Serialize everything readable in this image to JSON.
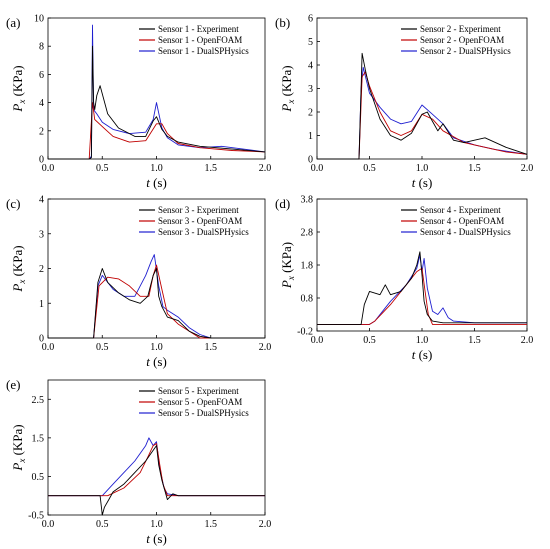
{
  "colors": {
    "experiment": "#000000",
    "openfoam": "#c00000",
    "dualsph": "#1f1fd0"
  },
  "chart_data": [
    {
      "type": "line",
      "label": "(a)",
      "xlabel": "t (s)",
      "ylabel": "Px (KPa)",
      "xlim": [
        0,
        2.0
      ],
      "ylim": [
        0,
        10
      ],
      "xticks": [
        "0.0",
        "0.5",
        "1.0",
        "1.5",
        "2.0"
      ],
      "yticks": [
        "0",
        "2",
        "4",
        "6",
        "8",
        "10"
      ],
      "legend": "top-right",
      "grid": false,
      "series": [
        {
          "name": "Sensor 1 - Experiment",
          "color": "experiment",
          "x": [
            0,
            0.38,
            0.4,
            0.41,
            0.42,
            0.43,
            0.45,
            0.48,
            0.55,
            0.65,
            0.8,
            0.9,
            0.97,
            1.0,
            1.05,
            1.1,
            1.2,
            1.4,
            1.7,
            2.0
          ],
          "y": [
            0,
            0,
            0.1,
            8.0,
            4.0,
            3.5,
            4.5,
            5.2,
            3.2,
            2.2,
            1.6,
            1.6,
            2.7,
            3.0,
            2.1,
            1.6,
            1.2,
            0.9,
            0.7,
            0.5
          ]
        },
        {
          "name": "Sensor 1 - OpenFOAM",
          "color": "openfoam",
          "x": [
            0,
            0.38,
            0.41,
            0.43,
            0.5,
            0.6,
            0.75,
            0.9,
            1.0,
            1.05,
            1.1,
            1.2,
            1.4,
            1.7,
            2.0
          ],
          "y": [
            0,
            0,
            4.0,
            2.8,
            2.3,
            1.6,
            1.2,
            1.3,
            2.5,
            2.5,
            1.8,
            1.1,
            0.8,
            0.6,
            0.5
          ]
        },
        {
          "name": "Sensor 1 - DualSPHysics",
          "color": "dualsph",
          "x": [
            0,
            0.38,
            0.4,
            0.41,
            0.42,
            0.45,
            0.5,
            0.6,
            0.75,
            0.9,
            0.97,
            1.0,
            1.05,
            1.1,
            1.2,
            1.4,
            1.6,
            1.8,
            2.0
          ],
          "y": [
            0,
            0,
            0.2,
            9.5,
            3.5,
            3.2,
            2.6,
            2.1,
            1.8,
            1.9,
            2.8,
            4.0,
            2.2,
            1.5,
            1.0,
            0.8,
            0.9,
            0.7,
            0.5
          ]
        }
      ]
    },
    {
      "type": "line",
      "label": "(b)",
      "xlabel": "t (s)",
      "ylabel": "Px (KPa)",
      "xlim": [
        0,
        2.0
      ],
      "ylim": [
        0,
        6
      ],
      "xticks": [
        "0.0",
        "0.5",
        "1.0",
        "1.5",
        "2.0"
      ],
      "yticks": [
        "0",
        "1",
        "2",
        "3",
        "4",
        "5",
        "6"
      ],
      "legend": "top-right",
      "grid": false,
      "series": [
        {
          "name": "Sensor 2 - Experiment",
          "color": "experiment",
          "x": [
            0,
            0.4,
            0.42,
            0.43,
            0.46,
            0.5,
            0.6,
            0.7,
            0.8,
            0.9,
            1.0,
            1.05,
            1.1,
            1.15,
            1.2,
            1.3,
            1.4,
            1.6,
            1.8,
            2.0
          ],
          "y": [
            0,
            0,
            3.0,
            4.5,
            3.8,
            3.0,
            1.7,
            1.0,
            0.8,
            1.1,
            1.9,
            2.0,
            1.6,
            1.2,
            1.5,
            0.8,
            0.7,
            0.9,
            0.5,
            0.2
          ]
        },
        {
          "name": "Sensor 2 - OpenFOAM",
          "color": "openfoam",
          "x": [
            0,
            0.4,
            0.43,
            0.46,
            0.5,
            0.6,
            0.7,
            0.8,
            0.9,
            1.0,
            1.1,
            1.2,
            1.4,
            1.6,
            1.8,
            2.0
          ],
          "y": [
            0,
            0,
            3.5,
            3.7,
            3.1,
            2.0,
            1.2,
            1.0,
            1.2,
            1.9,
            1.7,
            1.2,
            0.7,
            0.5,
            0.3,
            0.2
          ]
        },
        {
          "name": "Sensor 2 - DualSPHysics",
          "color": "dualsph",
          "x": [
            0,
            0.4,
            0.42,
            0.44,
            0.5,
            0.6,
            0.7,
            0.8,
            0.9,
            1.0,
            1.1,
            1.2,
            1.3,
            1.5,
            1.7,
            2.0
          ],
          "y": [
            0,
            0,
            3.0,
            3.9,
            2.8,
            2.2,
            1.7,
            1.5,
            1.6,
            2.3,
            1.9,
            1.5,
            0.9,
            0.6,
            0.4,
            0.2
          ]
        }
      ]
    },
    {
      "type": "line",
      "label": "(c)",
      "xlabel": "t (s)",
      "ylabel": "Px (KPa)",
      "xlim": [
        0,
        2.0
      ],
      "ylim": [
        0,
        4
      ],
      "xticks": [
        "0.0",
        "0.5",
        "1.0",
        "1.5",
        "2.0"
      ],
      "yticks": [
        "0",
        "1",
        "2",
        "3",
        "4"
      ],
      "legend": "top-right",
      "grid": false,
      "series": [
        {
          "name": "Sensor 3 - Experiment",
          "color": "experiment",
          "x": [
            0,
            0.42,
            0.46,
            0.5,
            0.55,
            0.65,
            0.75,
            0.85,
            0.92,
            0.97,
            1.0,
            1.02,
            1.05,
            1.1,
            1.2,
            1.3,
            1.4,
            1.5,
            2.0
          ],
          "y": [
            0,
            0,
            1.6,
            2.0,
            1.6,
            1.3,
            1.1,
            1.0,
            1.2,
            1.8,
            2.0,
            1.2,
            0.9,
            0.6,
            0.5,
            0.2,
            0.05,
            0,
            0
          ]
        },
        {
          "name": "Sensor 3 - OpenFOAM",
          "color": "openfoam",
          "x": [
            0,
            0.42,
            0.47,
            0.55,
            0.65,
            0.75,
            0.85,
            0.93,
            0.97,
            1.0,
            1.05,
            1.1,
            1.2,
            1.3,
            1.4,
            2.0
          ],
          "y": [
            0,
            0,
            1.5,
            1.75,
            1.7,
            1.5,
            1.2,
            1.2,
            1.8,
            2.1,
            1.4,
            0.7,
            0.4,
            0.2,
            0,
            0
          ]
        },
        {
          "name": "Sensor 3 - DualSPHysics",
          "color": "dualsph",
          "x": [
            0,
            0.42,
            0.46,
            0.5,
            0.6,
            0.7,
            0.8,
            0.9,
            0.95,
            0.98,
            1.02,
            1.06,
            1.1,
            1.2,
            1.3,
            1.4,
            1.5,
            2.0
          ],
          "y": [
            0,
            0,
            1.5,
            1.8,
            1.4,
            1.2,
            1.2,
            1.8,
            2.2,
            2.4,
            1.5,
            0.9,
            0.8,
            0.6,
            0.3,
            0.1,
            0,
            0
          ]
        }
      ]
    },
    {
      "type": "line",
      "label": "(d)",
      "xlabel": "t (s)",
      "ylabel": "Px (KPa)",
      "xlim": [
        0,
        2.0
      ],
      "ylim": [
        -0.2,
        3.8
      ],
      "xticks": [
        "0.0",
        "0.5",
        "1.0",
        "1.5",
        "2.0"
      ],
      "yticks": [
        "-0.2",
        "0.8",
        "1.8",
        "2.8",
        "3.8"
      ],
      "legend": "top-right",
      "grid": false,
      "series": [
        {
          "name": "Sensor 4 - Experiment",
          "color": "experiment",
          "x": [
            0,
            0.42,
            0.45,
            0.5,
            0.6,
            0.65,
            0.7,
            0.8,
            0.9,
            0.95,
            0.98,
            1.0,
            1.02,
            1.05,
            1.1,
            1.2,
            1.5,
            2.0
          ],
          "y": [
            0,
            0,
            0.6,
            1.0,
            0.9,
            1.2,
            0.9,
            1.0,
            1.4,
            1.8,
            2.2,
            1.5,
            0.7,
            0.3,
            0.1,
            0.05,
            0.05,
            0.05
          ]
        },
        {
          "name": "Sensor 4 - OpenFOAM",
          "color": "openfoam",
          "x": [
            0,
            0.5,
            0.55,
            0.7,
            0.85,
            0.95,
            1.0,
            1.03,
            1.06,
            1.1,
            2.0
          ],
          "y": [
            0,
            0,
            0.1,
            0.6,
            1.2,
            1.6,
            1.7,
            1.0,
            0.3,
            0,
            0
          ]
        },
        {
          "name": "Sensor 4 - DualSPHysics",
          "color": "dualsph",
          "x": [
            0,
            0.5,
            0.55,
            0.7,
            0.85,
            0.95,
            0.98,
            1.0,
            1.02,
            1.05,
            1.1,
            1.15,
            1.2,
            1.25,
            1.3,
            1.5,
            2.0
          ],
          "y": [
            0,
            0,
            0.1,
            0.7,
            1.2,
            1.7,
            2.1,
            1.6,
            2.0,
            1.1,
            0.4,
            0.3,
            0.5,
            0.2,
            0.1,
            0.05,
            0.05
          ]
        }
      ]
    },
    {
      "type": "line",
      "label": "(e)",
      "xlabel": "t (s)",
      "ylabel": "Px (KPa)",
      "xlim": [
        0,
        2.0
      ],
      "ylim": [
        -0.5,
        3
      ],
      "xticks": [
        "0.0",
        "0.5",
        "1.0",
        "1.5",
        "2.0"
      ],
      "yticks": [
        "-0.5",
        "0.5",
        "1.5",
        "2.5"
      ],
      "legend": "top-right",
      "grid": false,
      "series": [
        {
          "name": "Sensor 5 - Experiment",
          "color": "experiment",
          "x": [
            0,
            0.48,
            0.5,
            0.52,
            0.56,
            0.6,
            0.7,
            0.8,
            0.9,
            0.95,
            1.0,
            1.02,
            1.05,
            1.1,
            1.15,
            1.2,
            2.0
          ],
          "y": [
            0,
            0,
            -0.5,
            -0.3,
            -0.1,
            0.1,
            0.3,
            0.6,
            0.9,
            1.1,
            1.3,
            0.8,
            0.4,
            -0.1,
            0.05,
            0,
            0
          ]
        },
        {
          "name": "Sensor 5 - OpenFOAM",
          "color": "openfoam",
          "x": [
            0,
            0.55,
            0.7,
            0.85,
            0.92,
            0.97,
            1.0,
            1.03,
            1.06,
            1.1,
            2.0
          ],
          "y": [
            0,
            0,
            0.2,
            0.6,
            1.0,
            1.3,
            1.35,
            0.8,
            0.3,
            0,
            0
          ]
        },
        {
          "name": "Sensor 5 - DualSPHysics",
          "color": "dualsph",
          "x": [
            0,
            0.5,
            0.6,
            0.7,
            0.8,
            0.9,
            0.93,
            0.97,
            1.0,
            1.03,
            1.07,
            1.1,
            1.2,
            2.0
          ],
          "y": [
            0,
            0,
            0.3,
            0.6,
            0.9,
            1.3,
            1.5,
            1.3,
            1.4,
            0.7,
            0.2,
            0.05,
            0,
            0
          ]
        }
      ]
    }
  ]
}
